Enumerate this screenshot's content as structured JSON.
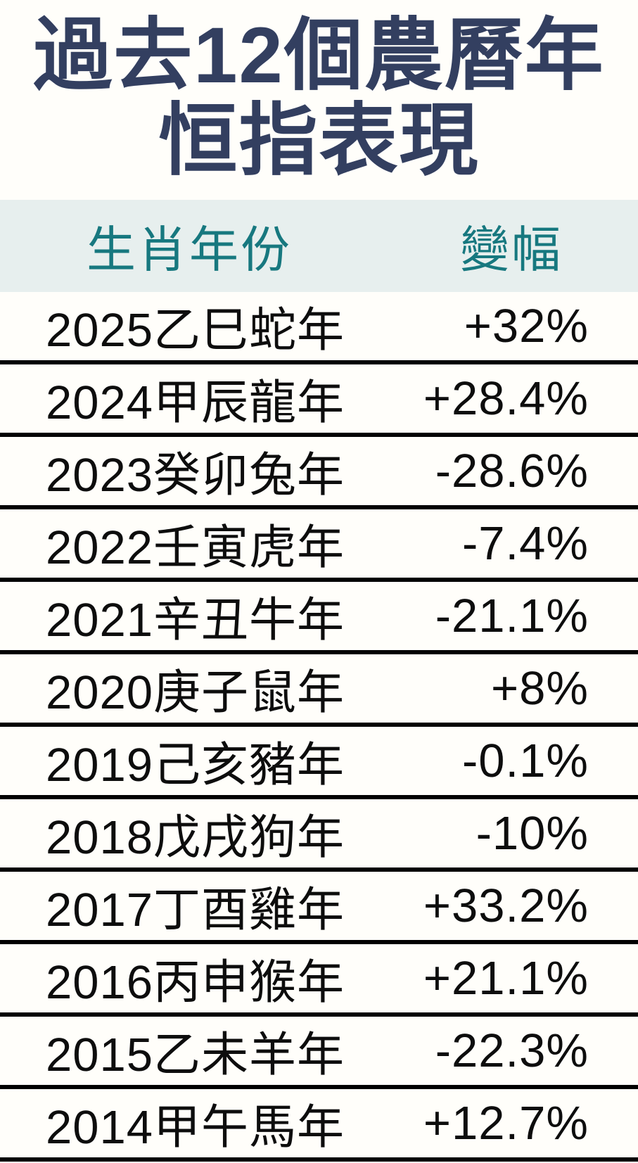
{
  "title": {
    "line1": "過去12個農曆年",
    "line2": "恒指表現"
  },
  "table": {
    "headers": {
      "year_col": "生肖年份",
      "change_col": "變幅"
    },
    "rows": [
      {
        "year": "2025乙巳蛇年",
        "change": "+32%"
      },
      {
        "year": "2024甲辰龍年",
        "change": "+28.4%"
      },
      {
        "year": "2023癸卯兔年",
        "change": "-28.6%"
      },
      {
        "year": "2022壬寅虎年",
        "change": "-7.4%"
      },
      {
        "year": "2021辛丑牛年",
        "change": "-21.1%"
      },
      {
        "year": "2020庚子鼠年",
        "change": "+8%"
      },
      {
        "year": "2019己亥豬年",
        "change": "-0.1%"
      },
      {
        "year": "2018戊戌狗年",
        "change": "-10%"
      },
      {
        "year": "2017丁酉雞年",
        "change": "+33.2%"
      },
      {
        "year": "2016丙申猴年",
        "change": "+21.1%"
      },
      {
        "year": "2015乙未羊年",
        "change": "-22.3%"
      },
      {
        "year": "2014甲午馬年",
        "change": "+12.7%"
      }
    ]
  },
  "colors": {
    "title_navy": "#333F60",
    "header_teal": "#17787F",
    "header_band_bg": "#E7EFEE",
    "row_text": "#0D0D0D",
    "separator_line": "#000000",
    "background": "#FFFEFA"
  },
  "chart_data": {
    "type": "table",
    "title": "過去12個農曆年恒指表現",
    "columns": [
      "生肖年份",
      "變幅"
    ],
    "rows": [
      [
        "2025乙巳蛇年",
        "+32%"
      ],
      [
        "2024甲辰龍年",
        "+28.4%"
      ],
      [
        "2023癸卯兔年",
        "-28.6%"
      ],
      [
        "2022壬寅虎年",
        "-7.4%"
      ],
      [
        "2021辛丑牛年",
        "-21.1%"
      ],
      [
        "2020庚子鼠年",
        "+8%"
      ],
      [
        "2019己亥豬年",
        "-0.1%"
      ],
      [
        "2018戊戌狗年",
        "-10%"
      ],
      [
        "2017丁酉雞年",
        "+33.2%"
      ],
      [
        "2016丙申猴年",
        "+21.1%"
      ],
      [
        "2015乙未羊年",
        "-22.3%"
      ],
      [
        "2014甲午馬年",
        "+12.7%"
      ]
    ],
    "change_values_pct": [
      32,
      28.4,
      -28.6,
      -7.4,
      -21.1,
      8,
      -0.1,
      -10,
      33.2,
      21.1,
      -22.3,
      12.7
    ],
    "years": [
      2025,
      2024,
      2023,
      2022,
      2021,
      2020,
      2019,
      2018,
      2017,
      2016,
      2015,
      2014
    ]
  }
}
